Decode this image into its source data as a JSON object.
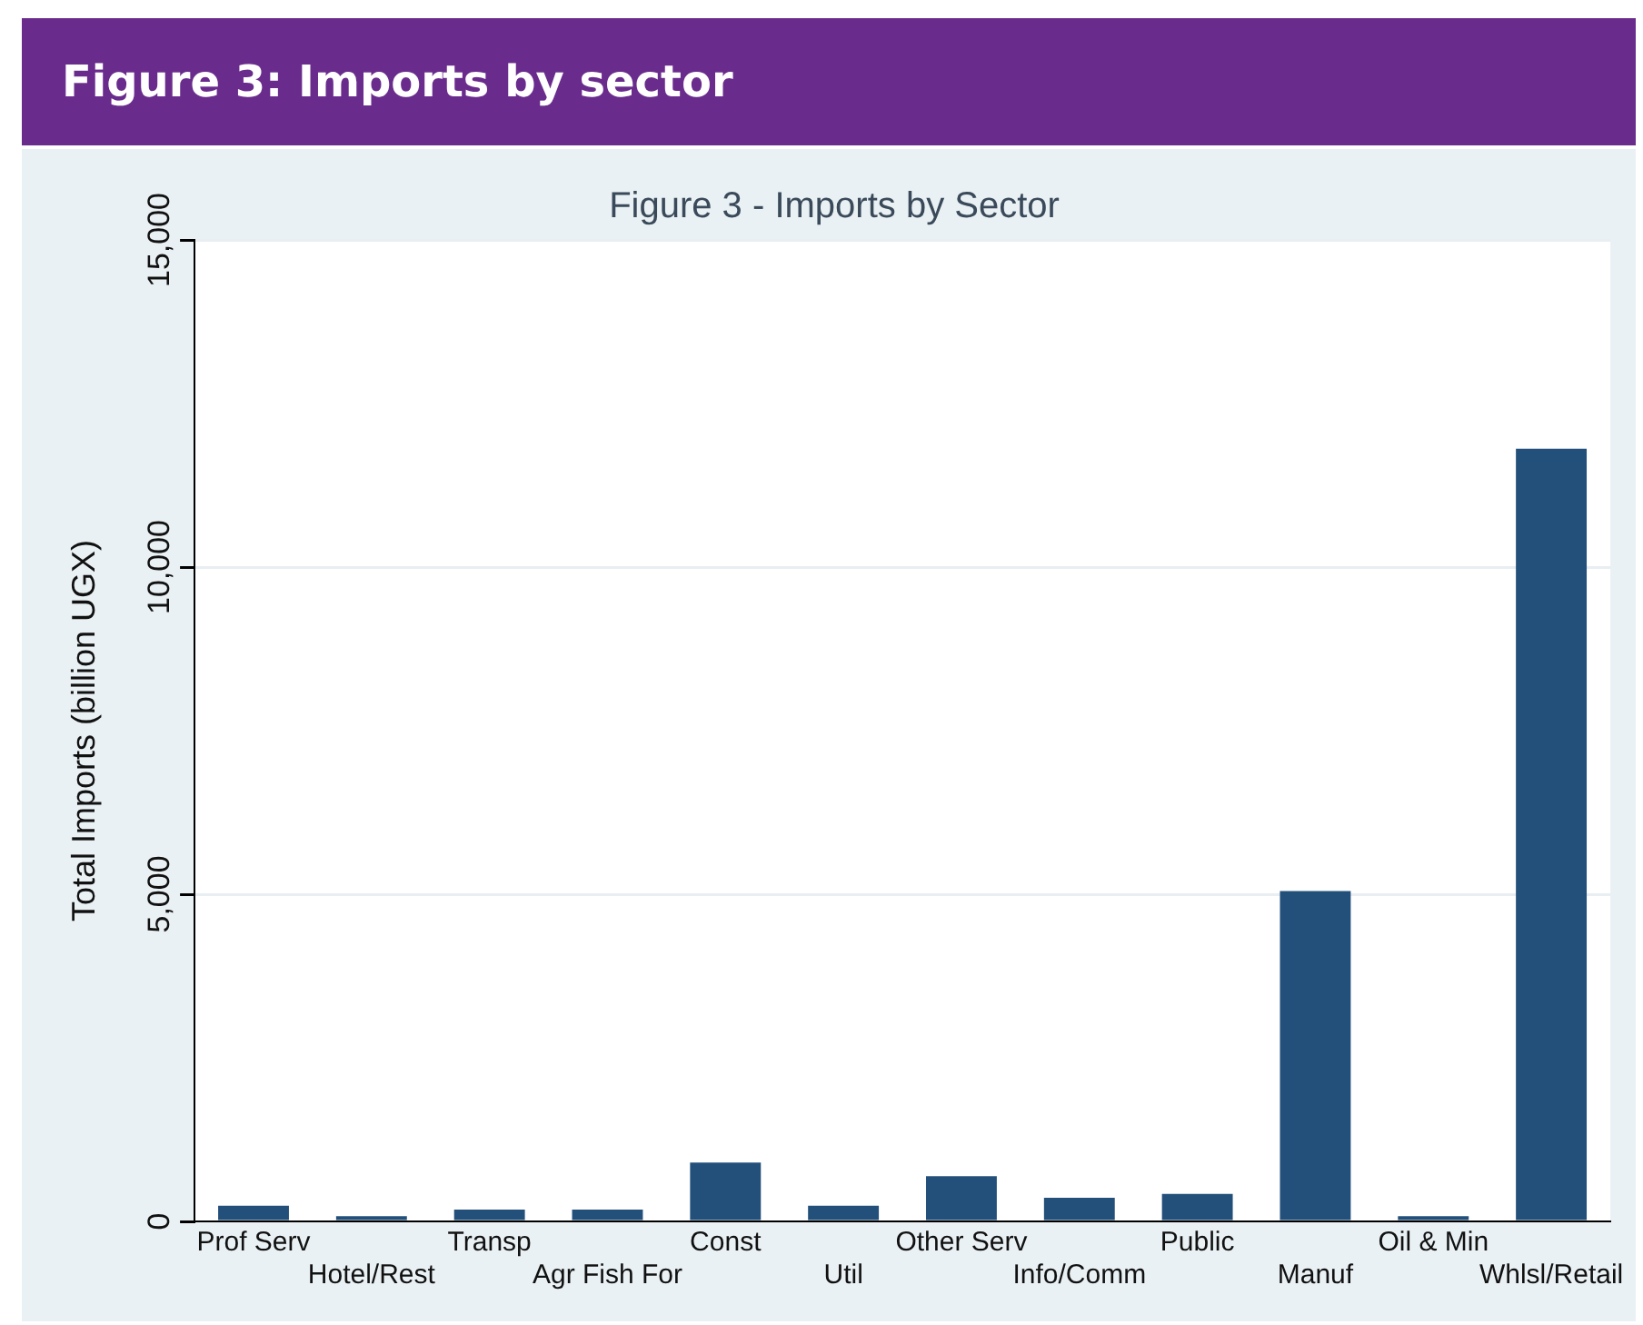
{
  "chart_data": {
    "type": "bar",
    "title": "Figure 3: Imports by sector",
    "subtitle": "Figure 3 - Imports by Sector",
    "ylabel": "Total Imports (billion UGX)",
    "categories": [
      "Prof Serv",
      "Hotel/Rest",
      "Transp",
      "Agr Fish For",
      "Const",
      "Util",
      "Other Serv",
      "Info/Comm",
      "Public",
      "Manuf",
      "Oil & Min",
      "Whlsl/Retail"
    ],
    "values": [
      240,
      80,
      180,
      180,
      900,
      240,
      690,
      360,
      420,
      5050,
      80,
      11810
    ],
    "color": "#23507a",
    "ylim": [
      0,
      15000
    ],
    "yticks": [
      {
        "value": 0,
        "label": "0"
      },
      {
        "value": 5000,
        "label": "5,000"
      },
      {
        "value": 10000,
        "label": "10,000"
      },
      {
        "value": 15000,
        "label": "15,000"
      }
    ],
    "grid": "y"
  }
}
